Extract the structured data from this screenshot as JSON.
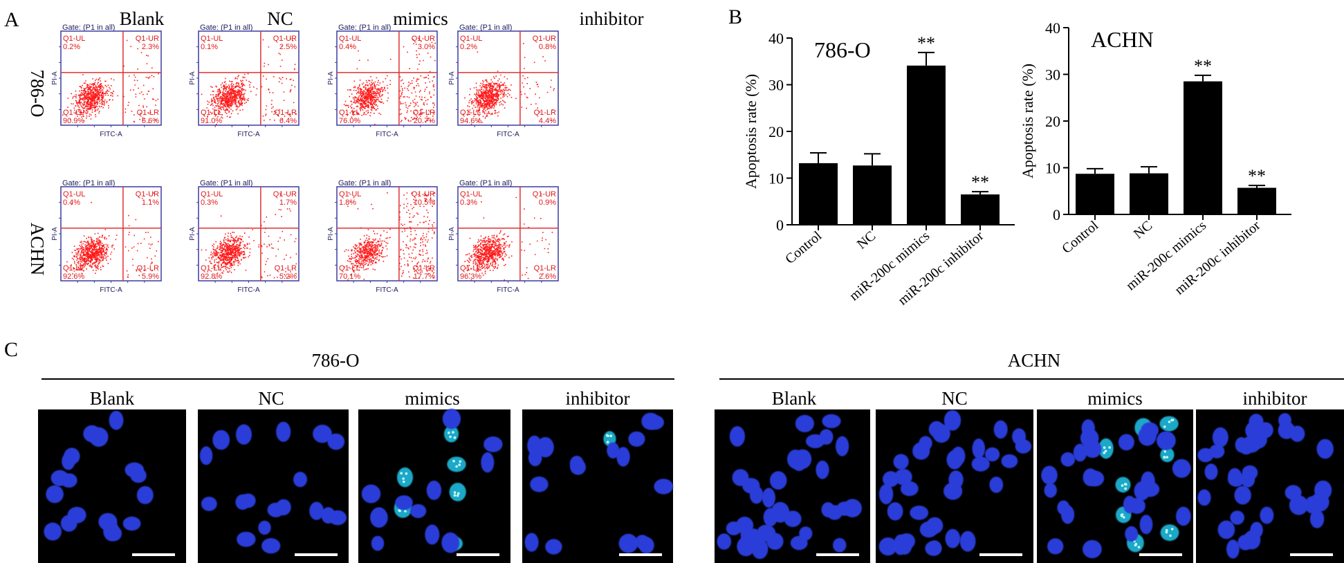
{
  "figure": {
    "panel_labels": {
      "a": "A",
      "b": "B",
      "c": "C"
    },
    "groups": [
      "Blank",
      "NC",
      "mimics",
      "inhibitor"
    ],
    "cell_lines": [
      "786-O",
      "ACHN"
    ],
    "flow": {
      "gate_label": "Gate: (P1 in all)",
      "x_axis_label": "FITC-A",
      "y_axis_label": "PI-A",
      "quadrant_names": [
        "Q1-UL",
        "Q1-UR",
        "Q1-LL",
        "Q1-LR"
      ],
      "rows": [
        {
          "cell_line": "786-O",
          "plots": [
            {
              "group": "Blank",
              "ul": "0.2%",
              "ur": "2.3%",
              "ll": "90.9%",
              "lr": "6.6%"
            },
            {
              "group": "NC",
              "ul": "0.1%",
              "ur": "2.5%",
              "ll": "91.0%",
              "lr": "6.4%"
            },
            {
              "group": "mimics",
              "ul": "0.4%",
              "ur": "3.0%",
              "ll": "76.0%",
              "lr": "20.7%"
            },
            {
              "group": "inhibitor",
              "ul": "0.2%",
              "ur": "0.8%",
              "ll": "94.6%",
              "lr": "4.4%"
            }
          ]
        },
        {
          "cell_line": "ACHN",
          "plots": [
            {
              "group": "Blank",
              "ul": "0.4%",
              "ur": "1.1%",
              "ll": "92.6%",
              "lr": "5.9%"
            },
            {
              "group": "NC",
              "ul": "0.3%",
              "ur": "1.7%",
              "ll": "92.8%",
              "lr": "5.2%"
            },
            {
              "group": "mimics",
              "ul": "1.8%",
              "ur": "10.5%",
              "ll": "70.1%",
              "lr": "17.7%"
            },
            {
              "group": "inhibitor",
              "ul": "0.3%",
              "ur": "0.9%",
              "ll": "96.3%",
              "lr": "2.6%"
            }
          ]
        }
      ]
    },
    "fluorescence_panel": {
      "cell_lines": [
        "786-O",
        "ACHN"
      ],
      "groups": [
        "Blank",
        "NC",
        "mimics",
        "inhibitor"
      ]
    }
  },
  "chart_data": [
    {
      "type": "bar",
      "title": "786-O",
      "categories": [
        "Control",
        "NC",
        "miR-200c mimics",
        "miR-200c inhibitor"
      ],
      "values": [
        13.2,
        12.7,
        34.1,
        6.5
      ],
      "errors": [
        2.2,
        2.5,
        2.8,
        0.6
      ],
      "significance": [
        "",
        "",
        "**",
        "**"
      ],
      "xlabel": "",
      "ylabel": "Apoptosis rate (%)",
      "ylim": [
        0,
        40
      ],
      "yticks": [
        "0",
        "10",
        "20",
        "30",
        "40"
      ]
    },
    {
      "type": "bar",
      "title": "ACHN",
      "categories": [
        "Control",
        "NC",
        "miR-200c mimics",
        "miR-200c inhibitor"
      ],
      "values": [
        8.7,
        8.8,
        28.5,
        5.7
      ],
      "errors": [
        1.1,
        1.4,
        1.3,
        0.5
      ],
      "significance": [
        "",
        "",
        "**",
        "**"
      ],
      "xlabel": "",
      "ylabel": "Apoptosis rate (%)",
      "ylim": [
        0,
        40
      ],
      "yticks": [
        "0",
        "10",
        "20",
        "30",
        "40"
      ]
    }
  ]
}
